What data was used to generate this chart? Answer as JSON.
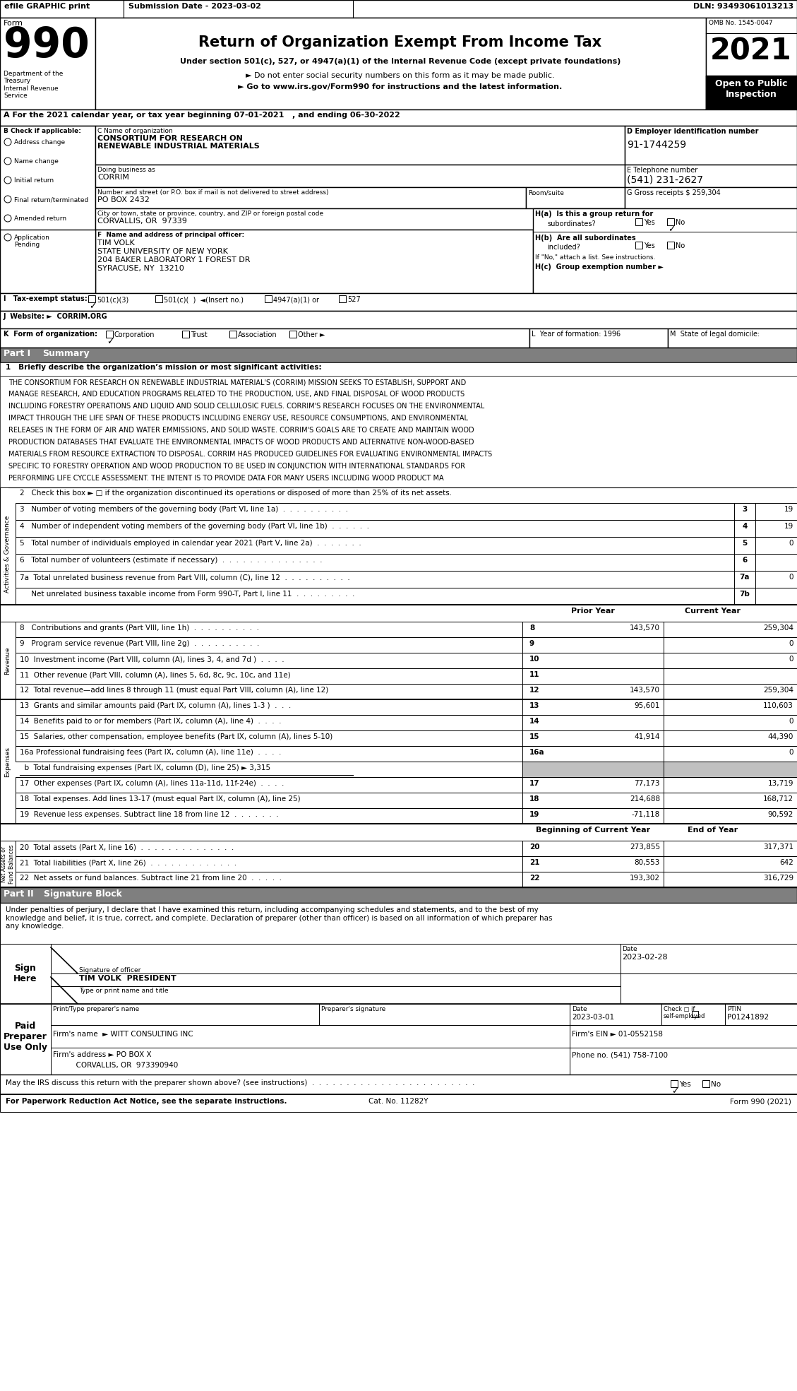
{
  "title_line": "Return of Organization Exempt From Income Tax",
  "subtitle1": "Under section 501(c), 527, or 4947(a)(1) of the Internal Revenue Code (except private foundations)",
  "subtitle2": "► Do not enter social security numbers on this form as it may be made public.",
  "subtitle3": "► Go to www.irs.gov/Form990 for instructions and the latest information.",
  "form_label": "Form",
  "year": "2021",
  "omb": "OMB No. 1545-0047",
  "open_public": "Open to Public\nInspection",
  "dept": "Department of the\nTreasury\nInternal Revenue\nService",
  "header_left": "efile GRAPHIC print",
  "header_sub_date": "Submission Date - 2023-03-02",
  "header_dln": "DLN: 93493061013213",
  "tax_year_line": "A For the 2021 calendar year, or tax year beginning 07-01-2021   , and ending 06-30-2022",
  "b_label": "B Check if applicable:",
  "checks": [
    "Address change",
    "Name change",
    "Initial return",
    "Final return/terminated",
    "Amended return",
    "Application\nPending"
  ],
  "c_label": "C Name of organization",
  "org_name_line1": "CONSORTIUM FOR RESEARCH ON",
  "org_name_line2": "RENEWABLE INDUSTRIAL MATERIALS",
  "dba_label": "Doing business as",
  "dba": "CORRIM",
  "street_label": "Number and street (or P.O. box if mail is not delivered to street address)",
  "street": "PO BOX 2432",
  "room_label": "Room/suite",
  "city_label": "City or town, state or province, country, and ZIP or foreign postal code",
  "city": "CORVALLIS, OR  97339",
  "d_label": "D Employer identification number",
  "ein": "91-1744259",
  "e_label": "E Telephone number",
  "phone": "(541) 231-2627",
  "g_label": "G Gross receipts $ 259,304",
  "f_label": "F  Name and address of principal officer:",
  "principal_name": "TIM VOLK",
  "principal_addr1": "STATE UNIVERSITY OF NEW YORK",
  "principal_addr2": "204 BAKER LABORATORY 1 FOREST DR",
  "principal_addr3": "SYRACUSE, NY  13210",
  "ha_label": "H(a)  Is this a group return for",
  "ha_sub": "subordinates?",
  "hb_label": "H(b)  Are all subordinates",
  "hb_sub": "included?",
  "hb_note": "If \"No,\" attach a list. See instructions.",
  "hc_label": "H(c)  Group exemption number ►",
  "i_label": "I   Tax-exempt status:",
  "i_opt1": "501(c)(3)",
  "i_opt2": "501(c)(  )  ◄(Insert no.)",
  "i_opt3": "4947(a)(1) or",
  "i_opt4": "527",
  "j_label": "J  Website: ►  CORRIM.ORG",
  "k_label": "K  Form of organization:",
  "k_opt1": "Corporation",
  "k_opt2": "Trust",
  "k_opt3": "Association",
  "k_opt4": "Other ►",
  "l_label": "L  Year of formation: 1996",
  "m_label": "M  State of legal domicile:",
  "part1_label": "Part I",
  "part1_title": "Summary",
  "line1_label": "1   Briefly describe the organization’s mission or most significant activities:",
  "mission_lines": [
    "THE CONSORTIUM FOR RESEARCH ON RENEWABLE INDUSTRIAL MATERIAL'S (CORRIM) MISSION SEEKS TO ESTABLISH, SUPPORT AND",
    "MANAGE RESEARCH, AND EDUCATION PROGRAMS RELATED TO THE PRODUCTION, USE, AND FINAL DISPOSAL OF WOOD PRODUCTS",
    "INCLUDING FORESTRY OPERATIONS AND LIQUID AND SOLID CELLULOSIC FUELS. CORRIM'S RESEARCH FOCUSES ON THE ENVIRONMENTAL",
    "IMPACT THROUGH THE LIFE SPAN OF THESE PRODUCTS INCLUDING ENERGY USE, RESOURCE CONSUMPTIONS, AND ENVIRONMENTAL",
    "RELEASES IN THE FORM OF AIR AND WATER EMMISSIONS, AND SOLID WASTE. CORRIM'S GOALS ARE TO CREATE AND MAINTAIN WOOD",
    "PRODUCTION DATABASES THAT EVALUATE THE ENVIRONMENTAL IMPACTS OF WOOD PRODUCTS AND ALTERNATIVE NON-WOOD-BASED",
    "MATERIALS FROM RESOURCE EXTRACTION TO DISPOSAL. CORRIM HAS PRODUCED GUIDELINES FOR EVALUATING ENVIRONMENTAL IMPACTS",
    "SPECIFIC TO FORESTRY OPERATION AND WOOD PRODUCTION TO BE USED IN CONJUNCTION WITH INTERNATIONAL STANDARDS FOR",
    "PERFORMING LIFE CYCCLE ASSESSMENT. THE INTENT IS TO PROVIDE DATA FOR MANY USERS INCLUDING WOOD PRODUCT MA"
  ],
  "line2_label": "2   Check this box ► □ if the organization discontinued its operations or disposed of more than 25% of its net assets.",
  "line3_label": "3   Number of voting members of the governing body (Part VI, line 1a)  .  .  .  .  .  .  .  .  .  .",
  "line4_label": "4   Number of independent voting members of the governing body (Part VI, line 1b)  .  .  .  .  .  .",
  "line5_label": "5   Total number of individuals employed in calendar year 2021 (Part V, line 2a)  .  .  .  .  .  .  .",
  "line6_label": "6   Total number of volunteers (estimate if necessary)  .  .  .  .  .  .  .  .  .  .  .  .  .  .  .",
  "line7a_label": "7a  Total unrelated business revenue from Part VIII, column (C), line 12  .  .  .  .  .  .  .  .  .  .",
  "line7b_label": "     Net unrelated business taxable income from Form 990-T, Part I, line 11  .  .  .  .  .  .  .  .  .",
  "prior_year_label": "Prior Year",
  "current_year_label": "Current Year",
  "line8_label": "8   Contributions and grants (Part VIII, line 1h)  .  .  .  .  .  .  .  .  .  .",
  "line9_label": "9   Program service revenue (Part VIII, line 2g)  .  .  .  .  .  .  .  .  .  .",
  "line10_label": "10  Investment income (Part VIII, column (A), lines 3, 4, and 7d )  .  .  .  .",
  "line11_label": "11  Other revenue (Part VIII, column (A), lines 5, 6d, 8c, 9c, 10c, and 11e)",
  "line12_label": "12  Total revenue—add lines 8 through 11 (must equal Part VIII, column (A), line 12)",
  "line13_label": "13  Grants and similar amounts paid (Part IX, column (A), lines 1-3 )  .  .  .",
  "line14_label": "14  Benefits paid to or for members (Part IX, column (A), line 4)  .  .  .  .",
  "line15_label": "15  Salaries, other compensation, employee benefits (Part IX, column (A), lines 5-10)",
  "line16a_label": "16a Professional fundraising fees (Part IX, column (A), line 11e)  .  .  .  .",
  "line16b_label": "  b  Total fundraising expenses (Part IX, column (D), line 25) ► 3,315",
  "line17_label": "17  Other expenses (Part IX, column (A), lines 11a-11d, 11f-24e)  .  .  .  .",
  "line18_label": "18  Total expenses. Add lines 13-17 (must equal Part IX, column (A), line 25)",
  "line19_label": "19  Revenue less expenses. Subtract line 18 from line 12  .  .  .  .  .  .  .",
  "beg_year_label": "Beginning of Current Year",
  "end_year_label": "End of Year",
  "line20_label": "20  Total assets (Part X, line 16)  .  .  .  .  .  .  .  .  .  .  .  .  .  .",
  "line21_label": "21  Total liabilities (Part X, line 26)  .  .  .  .  .  .  .  .  .  .  .  .  .",
  "line22_label": "22  Net assets or fund balances. Subtract line 21 from line 20  .  .  .  .  .",
  "nums_3_6": [
    "3",
    "4",
    "5",
    "6",
    "7a",
    "7b"
  ],
  "vals_3_6": [
    "19",
    "19",
    "0",
    "",
    "0",
    ""
  ],
  "rev_nums": [
    "8",
    "9",
    "10",
    "11",
    "12"
  ],
  "rev_prior": [
    "143,570",
    "",
    "",
    "",
    "143,570"
  ],
  "rev_current": [
    "259,304",
    "0",
    "0",
    "",
    "259,304"
  ],
  "exp_nums": [
    "13",
    "14",
    "15",
    "16a"
  ],
  "exp_prior": [
    "95,601",
    "",
    "41,914",
    ""
  ],
  "exp_current": [
    "110,603",
    "0",
    "44,390",
    "0"
  ],
  "exp2_nums": [
    "17",
    "18",
    "19"
  ],
  "exp2_prior": [
    "77,173",
    "214,688",
    "-71,118"
  ],
  "exp2_current": [
    "13,719",
    "168,712",
    "90,592"
  ],
  "na_nums": [
    "20",
    "21",
    "22"
  ],
  "na_beg": [
    "273,855",
    "80,553",
    "193,302"
  ],
  "na_end": [
    "317,371",
    "642",
    "316,729"
  ],
  "part2_label": "Part II",
  "part2_title": "Signature Block",
  "sig_note": "Under penalties of perjury, I declare that I have examined this return, including accompanying schedules and statements, and to the best of my\nknowledge and belief, it is true, correct, and complete. Declaration of preparer (other than officer) is based on all information of which preparer has\nany knowledge.",
  "sig_officer_label": "Signature of officer",
  "sig_date": "2023-02-28",
  "sig_date_label": "Date",
  "sig_name": "TIM VOLK  PRESIDENT",
  "sig_name_label": "Type or print name and title",
  "sign_here": "Sign\nHere",
  "paid_preparer_label": "Paid\nPreparer\nUse Only",
  "preparer_name_label": "Print/Type preparer's name",
  "preparer_sig_label": "Preparer's signature",
  "preparer_date_label": "Date",
  "preparer_date": "2023-03-01",
  "preparer_check_label": "Check □ if\nself-employed",
  "preparer_ptin_label": "PTIN",
  "preparer_ptin": "P01241892",
  "firm_name_label": "Firm's name",
  "firm_name": "► WITT CONSULTING INC",
  "firm_ein_label": "Firm's EIN ► 01-0552158",
  "firm_addr_label": "Firm's address ►",
  "firm_addr": "PO BOX X",
  "firm_city": "CORVALLIS, OR  973390940",
  "phone_label": "Phone no. (541) 758-7100",
  "irs_discuss_label": "May the IRS discuss this return with the preparer shown above? (see instructions)  .  .  .  .  .  .  .  .  .  .  .  .  .  .  .  .  .  .  .  .  .  .  .  .",
  "footer1": "For Paperwork Reduction Act Notice, see the separate instructions.",
  "footer_cat": "Cat. No. 11282Y",
  "footer_form": "Form 990 (2021)",
  "sidebar_gov": "Activities & Governance",
  "sidebar_rev": "Revenue",
  "sidebar_exp": "Expenses",
  "sidebar_na": "Net Assets or\nFund Balances"
}
